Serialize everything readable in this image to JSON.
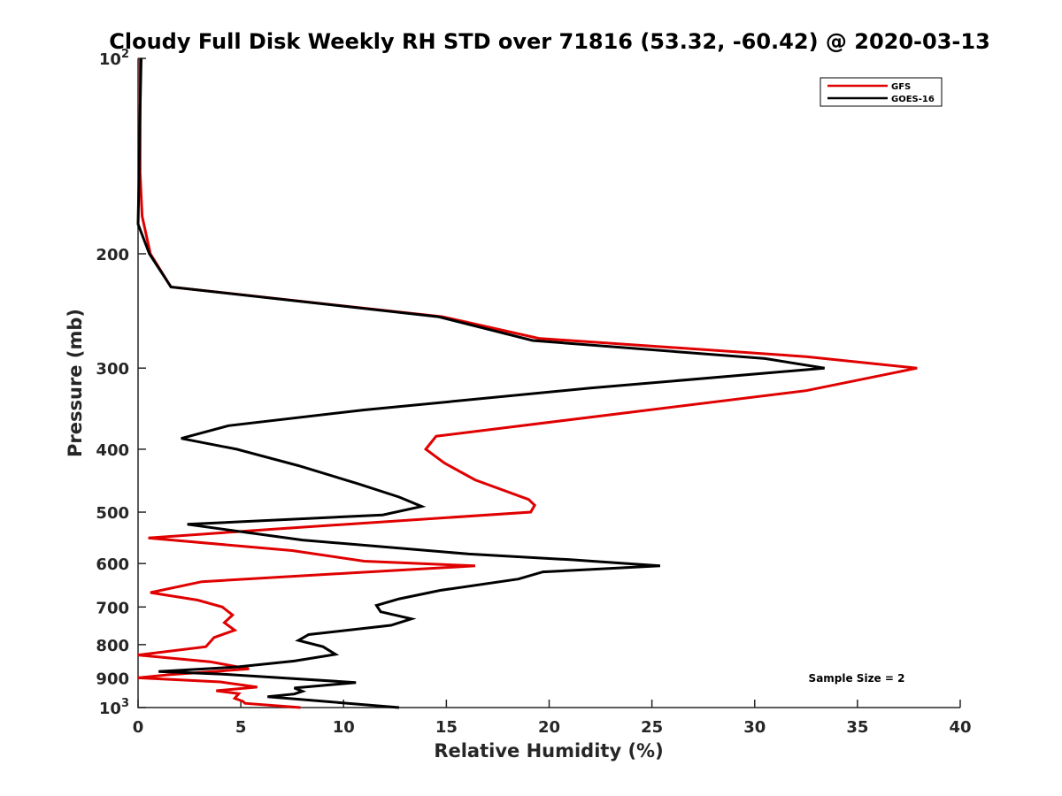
{
  "chart_data": {
    "type": "line",
    "title": "Cloudy Full Disk Weekly RH STD over 71816 (53.32, -60.42) @ 2020-03-13",
    "xlabel": "Relative Humidity (%)",
    "ylabel": "Pressure (mb)",
    "xlim": [
      0,
      40
    ],
    "ylim": [
      100,
      1000
    ],
    "yscale": "log",
    "y_reversed": true,
    "grid": false,
    "legend_position": "top-right",
    "xticks": [
      0,
      5,
      10,
      15,
      20,
      25,
      30,
      35,
      40
    ],
    "xtick_labels": [
      "0",
      "5",
      "10",
      "15",
      "20",
      "25",
      "30",
      "35",
      "40"
    ],
    "yticks": [
      100,
      200,
      300,
      400,
      500,
      600,
      700,
      800,
      900,
      1000
    ],
    "ytick_labels": [
      {
        "base": "10",
        "exp": "2"
      },
      {
        "base": "200",
        "exp": ""
      },
      {
        "base": "300",
        "exp": ""
      },
      {
        "base": "400",
        "exp": ""
      },
      {
        "base": "500",
        "exp": ""
      },
      {
        "base": "600",
        "exp": ""
      },
      {
        "base": "700",
        "exp": ""
      },
      {
        "base": "800",
        "exp": ""
      },
      {
        "base": "900",
        "exp": ""
      },
      {
        "base": "10",
        "exp": "3"
      }
    ],
    "annotation": "Sample Size = 2",
    "series": [
      {
        "name": "GFS",
        "color": "#e00000",
        "points": [
          [
            0.1,
            100
          ],
          [
            0.1,
            120
          ],
          [
            0.1,
            150
          ],
          [
            0.2,
            175
          ],
          [
            0.6,
            200
          ],
          [
            1.6,
            225
          ],
          [
            14.8,
            250
          ],
          [
            19.5,
            270
          ],
          [
            32.5,
            288
          ],
          [
            37.9,
            300
          ],
          [
            32.5,
            325
          ],
          [
            14.5,
            382
          ],
          [
            14.0,
            400
          ],
          [
            14.9,
            420
          ],
          [
            16.4,
            446
          ],
          [
            19.0,
            478
          ],
          [
            19.3,
            488
          ],
          [
            19.1,
            500
          ],
          [
            7.0,
            530
          ],
          [
            0.5,
            548
          ],
          [
            7.5,
            573
          ],
          [
            11.0,
            595
          ],
          [
            16.4,
            605
          ],
          [
            10.5,
            620
          ],
          [
            3.1,
            640
          ],
          [
            0.6,
            665
          ],
          [
            2.9,
            683
          ],
          [
            4.1,
            700
          ],
          [
            4.6,
            720
          ],
          [
            4.2,
            740
          ],
          [
            4.7,
            760
          ],
          [
            3.7,
            780
          ],
          [
            3.3,
            806
          ],
          [
            0.0,
            830
          ],
          [
            3.5,
            850
          ],
          [
            5.4,
            872
          ],
          [
            1.5,
            890
          ],
          [
            0.0,
            900
          ],
          [
            4.0,
            913
          ],
          [
            5.8,
            930
          ],
          [
            3.8,
            942
          ],
          [
            4.9,
            952
          ],
          [
            4.7,
            968
          ],
          [
            5.1,
            978
          ],
          [
            5.2,
            985
          ],
          [
            7.9,
            1000
          ]
        ]
      },
      {
        "name": "GOES-16",
        "color": "#000000",
        "points": [
          [
            0.15,
            100
          ],
          [
            0.1,
            120
          ],
          [
            0.05,
            150
          ],
          [
            0.0,
            180
          ],
          [
            0.55,
            200
          ],
          [
            1.6,
            225
          ],
          [
            14.6,
            250
          ],
          [
            19.2,
            272
          ],
          [
            30.5,
            290
          ],
          [
            33.4,
            300
          ],
          [
            22.0,
            322
          ],
          [
            11.0,
            348
          ],
          [
            4.4,
            368
          ],
          [
            2.1,
            385
          ],
          [
            4.8,
            400
          ],
          [
            7.8,
            424
          ],
          [
            10.7,
            452
          ],
          [
            12.7,
            474
          ],
          [
            13.8,
            490
          ],
          [
            11.9,
            505
          ],
          [
            2.4,
            522
          ],
          [
            8.0,
            552
          ],
          [
            16.1,
            580
          ],
          [
            21.1,
            592
          ],
          [
            25.4,
            605
          ],
          [
            19.7,
            618
          ],
          [
            18.5,
            634
          ],
          [
            14.7,
            660
          ],
          [
            12.7,
            680
          ],
          [
            11.6,
            696
          ],
          [
            11.8,
            712
          ],
          [
            13.3,
            730
          ],
          [
            12.3,
            747
          ],
          [
            8.3,
            772
          ],
          [
            7.8,
            788
          ],
          [
            9.0,
            806
          ],
          [
            9.6,
            828
          ],
          [
            7.6,
            848
          ],
          [
            4.8,
            866
          ],
          [
            1.0,
            880
          ],
          [
            4.0,
            888
          ],
          [
            10.6,
            915
          ],
          [
            7.6,
            933
          ],
          [
            8.0,
            944
          ],
          [
            7.6,
            953
          ],
          [
            6.3,
            962
          ],
          [
            12.7,
            1000
          ]
        ]
      }
    ]
  }
}
